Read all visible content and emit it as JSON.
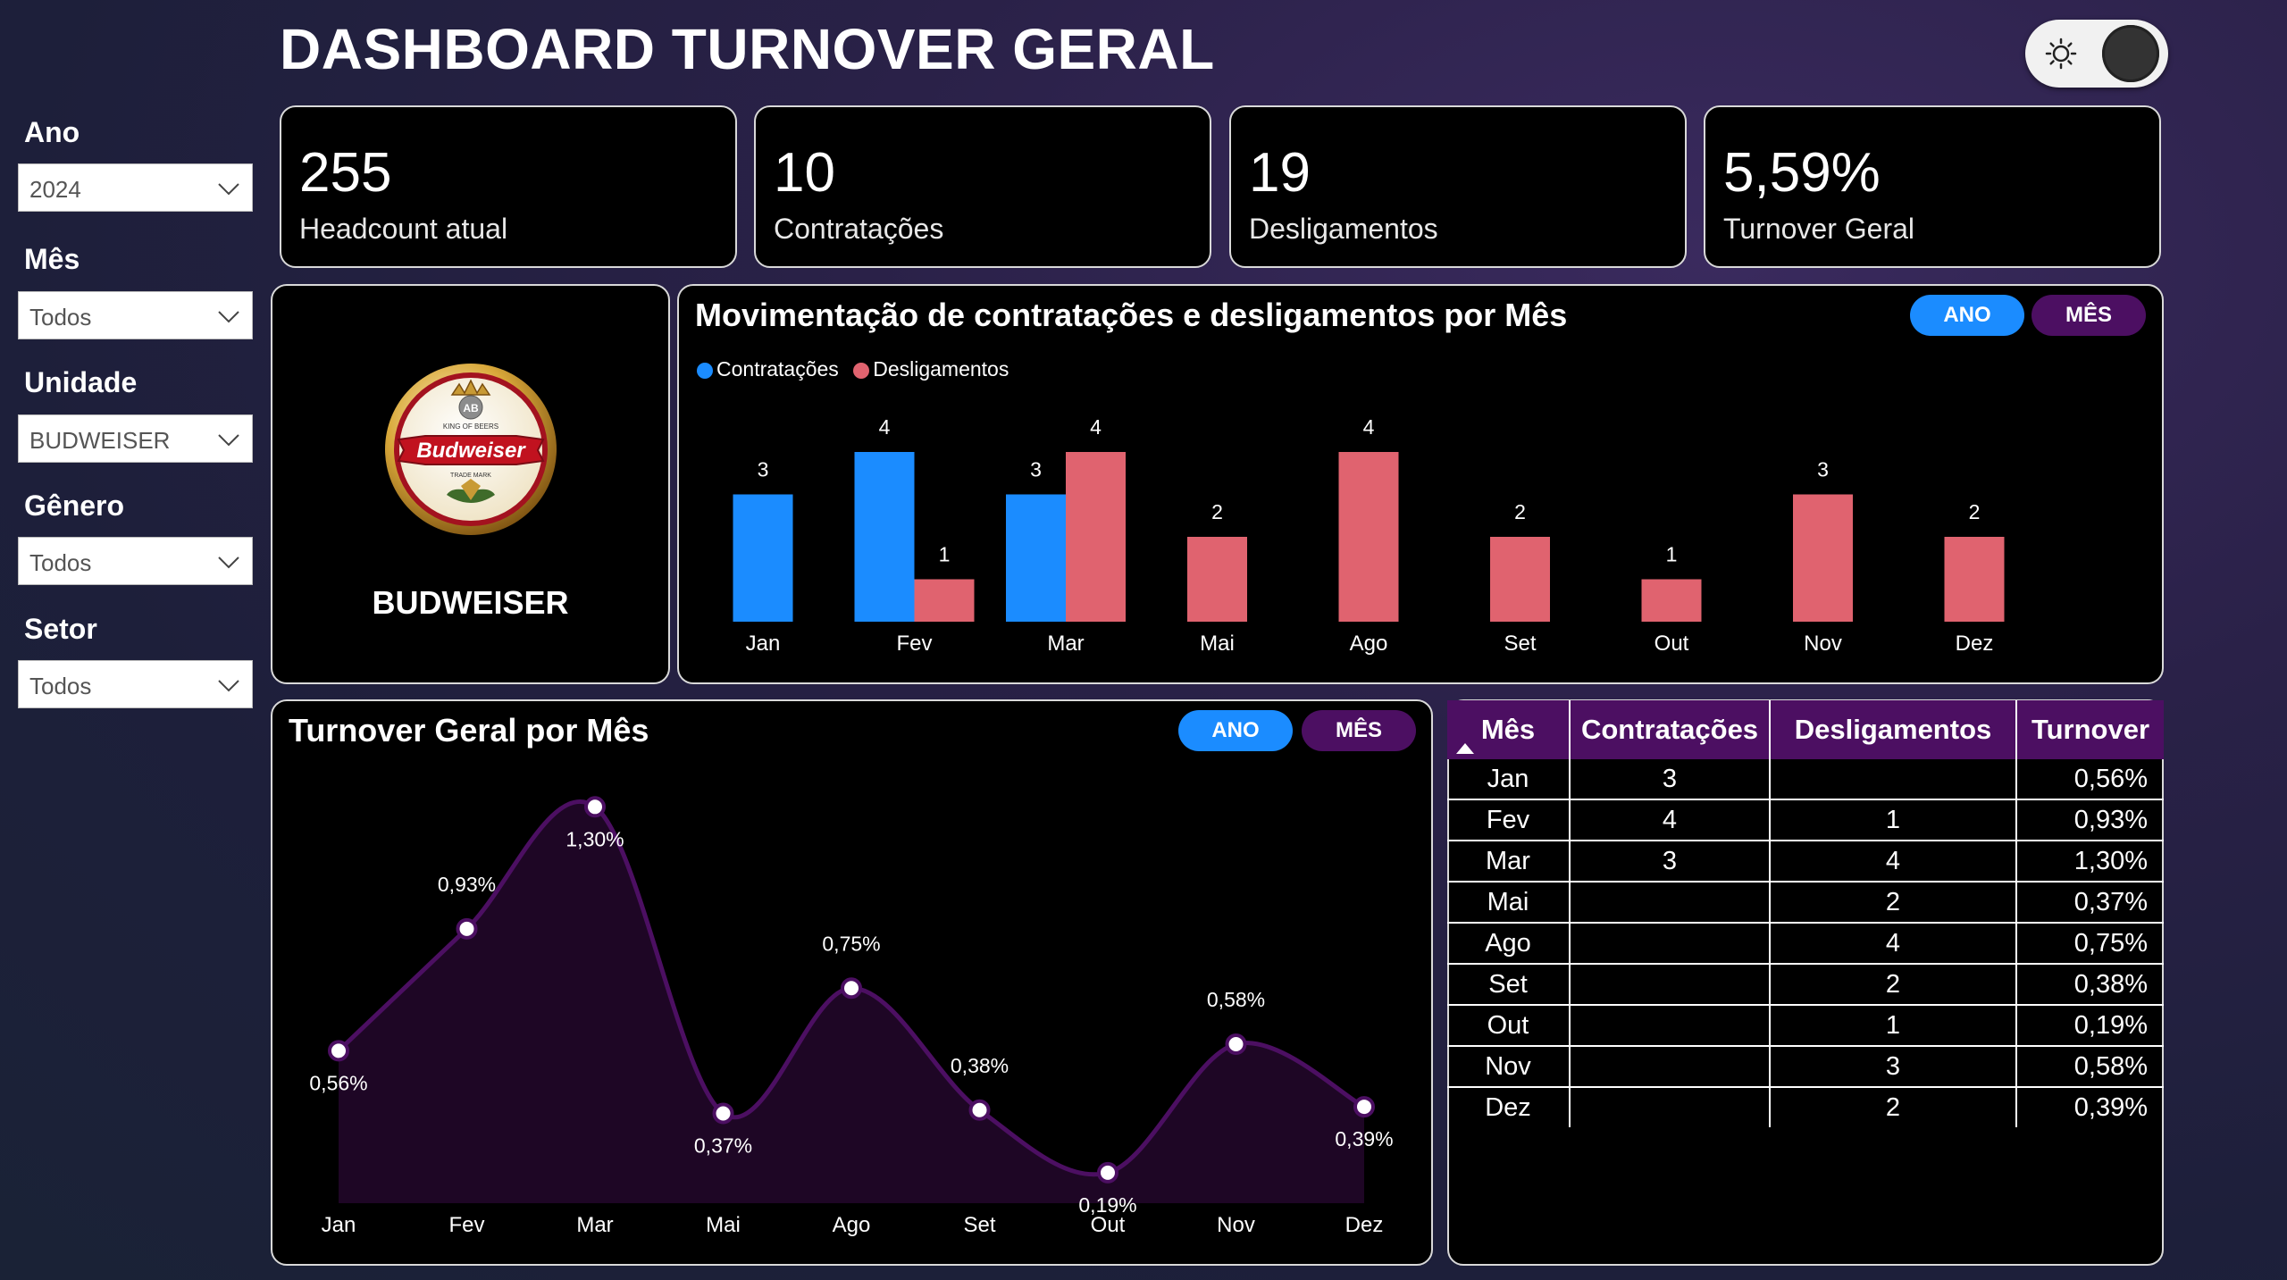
{
  "title": "DASHBOARD TURNOVER GERAL",
  "filters": [
    {
      "label": "Ano",
      "value": "2024"
    },
    {
      "label": "Mês",
      "value": "Todos"
    },
    {
      "label": "Unidade",
      "value": "BUDWEISER"
    },
    {
      "label": "Gênero",
      "value": "Todos"
    },
    {
      "label": "Setor",
      "value": "Todos"
    }
  ],
  "kpis": [
    {
      "value": "255",
      "label": "Headcount atual"
    },
    {
      "value": "10",
      "label": "Contratações"
    },
    {
      "value": "19",
      "label": "Desligamentos"
    },
    {
      "value": "5,59%",
      "label": "Turnover Geral"
    }
  ],
  "logo": {
    "brand": "BUDWEISER",
    "badge_top": "KING OF BEERS",
    "badge_script": "Budweiser",
    "badge_bottom": "TRADE MARK",
    "badge_mono": "AB"
  },
  "bar_panel": {
    "title": "Movimentação de contratações e desligamentos por Mês",
    "btn_ano": "ANO",
    "btn_mes": "MÊS",
    "legend_a": "Contratações",
    "legend_b": "Desligamentos"
  },
  "line_panel": {
    "title": "Turnover Geral por Mês",
    "btn_ano": "ANO",
    "btn_mes": "MÊS"
  },
  "colors": {
    "contratacoes": "#1b8cff",
    "desligamentos": "#e0636f",
    "line": "#4c0f62",
    "accent_purple": "#4c0f62"
  },
  "chart_data": [
    {
      "type": "bar",
      "title": "Movimentação de contratações e desligamentos por Mês",
      "categories": [
        "Jan",
        "Fev",
        "Mar",
        "Mai",
        "Ago",
        "Set",
        "Out",
        "Nov",
        "Dez"
      ],
      "series": [
        {
          "name": "Contratações",
          "values": [
            3,
            4,
            3,
            null,
            null,
            null,
            null,
            null,
            null
          ]
        },
        {
          "name": "Desligamentos",
          "values": [
            null,
            1,
            4,
            2,
            4,
            2,
            1,
            3,
            2
          ]
        }
      ],
      "ylim": [
        0,
        4
      ],
      "legend": "top-left"
    },
    {
      "type": "area",
      "title": "Turnover Geral por Mês",
      "categories": [
        "Jan",
        "Fev",
        "Mar",
        "Mai",
        "Ago",
        "Set",
        "Out",
        "Nov",
        "Dez"
      ],
      "values": [
        0.56,
        0.93,
        1.3,
        0.37,
        0.75,
        0.38,
        0.19,
        0.58,
        0.39
      ],
      "labels": [
        "0,56%",
        "0,93%",
        "1,30%",
        "0,37%",
        "0,75%",
        "0,38%",
        "0,19%",
        "0,58%",
        "0,39%"
      ]
    }
  ],
  "table": {
    "headers": [
      "Mês",
      "Contratações",
      "Desligamentos",
      "Turnover"
    ],
    "rows": [
      [
        "Jan",
        "3",
        "",
        "0,56%"
      ],
      [
        "Fev",
        "4",
        "1",
        "0,93%"
      ],
      [
        "Mar",
        "3",
        "4",
        "1,30%"
      ],
      [
        "Mai",
        "",
        "2",
        "0,37%"
      ],
      [
        "Ago",
        "",
        "4",
        "0,75%"
      ],
      [
        "Set",
        "",
        "2",
        "0,38%"
      ],
      [
        "Out",
        "",
        "1",
        "0,19%"
      ],
      [
        "Nov",
        "",
        "3",
        "0,58%"
      ],
      [
        "Dez",
        "",
        "2",
        "0,39%"
      ]
    ]
  }
}
